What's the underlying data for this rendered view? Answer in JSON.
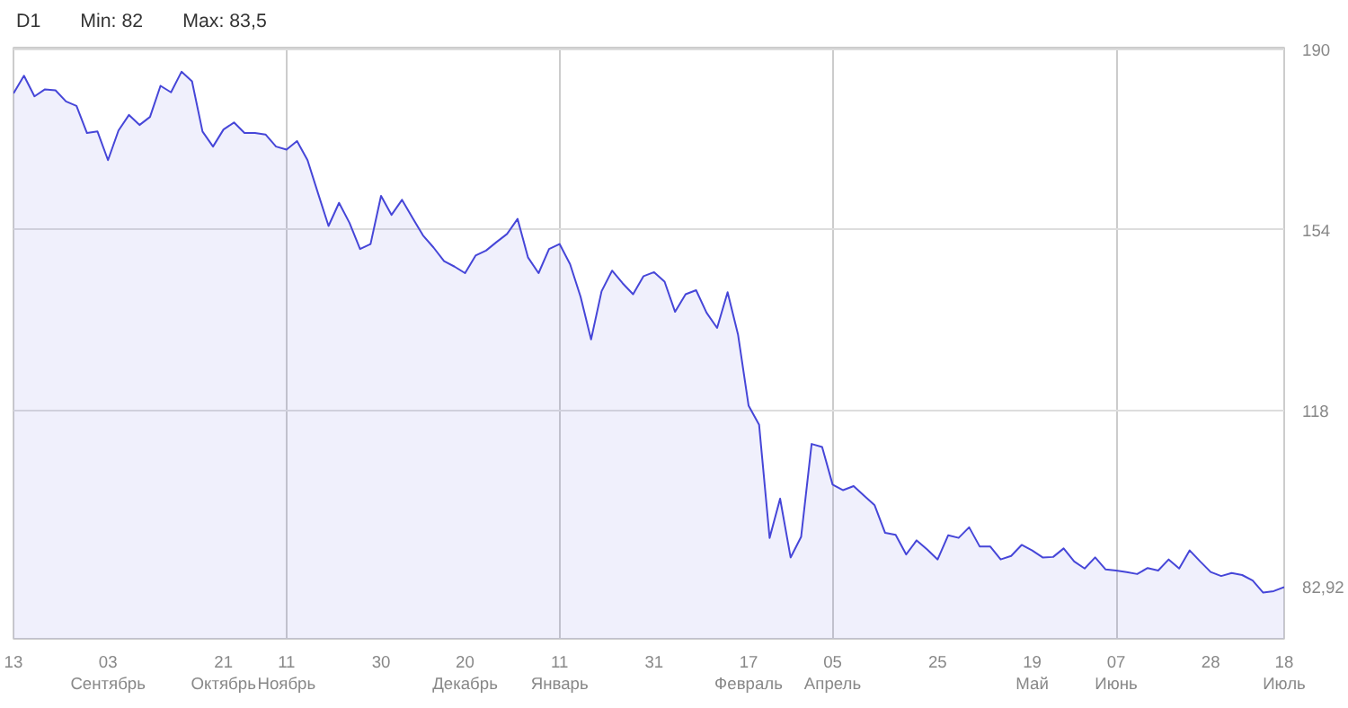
{
  "chart_data": {
    "type": "area",
    "title": "D1",
    "annotations": [
      "Min: 82",
      "Max: 83,5"
    ],
    "categories": [
      "13",
      null,
      null,
      null,
      null,
      null,
      null,
      null,
      null,
      "03\nСентябрь",
      null,
      null,
      null,
      null,
      null,
      null,
      null,
      null,
      null,
      null,
      "21\nОктябрь",
      null,
      null,
      null,
      null,
      null,
      "11\nНоябрь",
      null,
      null,
      null,
      null,
      null,
      null,
      null,
      null,
      "30",
      null,
      null,
      null,
      null,
      null,
      null,
      null,
      "20\nДекабрь",
      null,
      null,
      null,
      null,
      null,
      null,
      null,
      null,
      "11\nЯнварь",
      null,
      null,
      null,
      null,
      null,
      null,
      null,
      null,
      "31",
      null,
      null,
      null,
      null,
      null,
      null,
      null,
      null,
      "17\nФевраль",
      null,
      null,
      null,
      null,
      null,
      null,
      null,
      "05\nАпрель",
      null,
      null,
      null,
      null,
      null,
      null,
      null,
      null,
      null,
      "25",
      null,
      null,
      null,
      null,
      null,
      null,
      null,
      null,
      "19\nМай",
      null,
      null,
      null,
      null,
      null,
      null,
      null,
      "07\nИюнь",
      null,
      null,
      null,
      null,
      null,
      null,
      null,
      null,
      "28",
      null,
      null,
      null,
      null,
      null,
      null,
      "18\nИюль"
    ],
    "series": [
      {
        "color": "#4646d8",
        "values": [
          181.2,
          184.7,
          180.6,
          182.0,
          181.8,
          179.6,
          178.7,
          173.3,
          173.6,
          167.9,
          173.8,
          176.9,
          174.9,
          176.5,
          182.7,
          181.4,
          185.5,
          183.6,
          173.6,
          170.6,
          174.0,
          175.4,
          173.3,
          173.3,
          173.0,
          170.6,
          170.0,
          171.7,
          167.9,
          161.3,
          154.8,
          159.4,
          155.4,
          150.2,
          151.2,
          160.8,
          157.0,
          160.0,
          156.4,
          152.9,
          150.5,
          147.8,
          146.7,
          145.4,
          148.9,
          149.9,
          151.6,
          153.2,
          156.2,
          148.5,
          145.4,
          150.2,
          151.2,
          147.2,
          140.7,
          132.2,
          141.8,
          145.9,
          143.4,
          141.2,
          144.8,
          145.6,
          143.7,
          137.7,
          141.2,
          142.0,
          137.5,
          134.5,
          141.6,
          133.1,
          119.0,
          115.2,
          92.7,
          100.5,
          88.8,
          92.9,
          111.4,
          110.8,
          103.3,
          102.2,
          103.0,
          101.1,
          99.2,
          93.7,
          93.3,
          89.4,
          92.2,
          90.4,
          88.4,
          93.2,
          92.7,
          94.8,
          91.0,
          91.0,
          88.4,
          89.1,
          91.3,
          90.2,
          88.8,
          88.9,
          90.6,
          88.0,
          86.6,
          88.8,
          86.4,
          86.2,
          85.9,
          85.5,
          86.7,
          86.2,
          88.4,
          86.6,
          90.2,
          88.0,
          85.9,
          85.1,
          85.7,
          85.3,
          84.2,
          81.8,
          82.1,
          82.92
        ]
      }
    ],
    "ylim": [
      72.6,
      190.3
    ],
    "yticks": [
      {
        "value": 82.92,
        "label": "82,92"
      },
      118,
      154,
      190
    ],
    "grid": true
  }
}
